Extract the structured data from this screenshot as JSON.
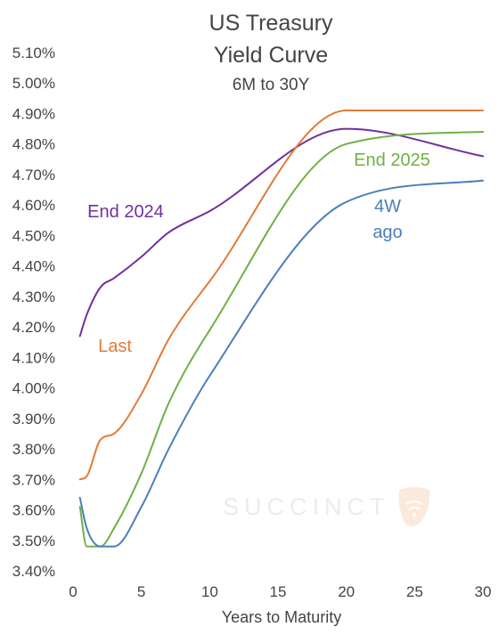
{
  "chart_data": {
    "type": "line",
    "title_lines": [
      "US Treasury",
      "Yield Curve"
    ],
    "subtitle": "6M to 30Y",
    "xlabel": "Years to Maturity",
    "ylabel": "",
    "xlim": [
      0,
      30
    ],
    "ylim": [
      3.4,
      5.1
    ],
    "x_ticks": [
      0,
      5,
      10,
      15,
      20,
      25,
      30
    ],
    "y_ticks": [
      3.4,
      3.5,
      3.6,
      3.7,
      3.8,
      3.9,
      4.0,
      4.1,
      4.2,
      4.3,
      4.4,
      4.5,
      4.6,
      4.7,
      4.8,
      4.9,
      5.0,
      5.1
    ],
    "y_tick_labels": [
      "3.40%",
      "3.50%",
      "3.60%",
      "3.70%",
      "3.80%",
      "3.90%",
      "4.00%",
      "4.10%",
      "4.20%",
      "4.30%",
      "4.40%",
      "4.50%",
      "4.60%",
      "4.70%",
      "4.80%",
      "4.90%",
      "5.00%",
      "5.10%"
    ],
    "grid": false,
    "watermark": "SUCCINCT",
    "series": [
      {
        "label_lines": [
          "End 2024"
        ],
        "color": "#7030a0",
        "points": [
          [
            0.5,
            4.17
          ],
          [
            1,
            4.24
          ],
          [
            2,
            4.33
          ],
          [
            3,
            4.36
          ],
          [
            5,
            4.43
          ],
          [
            7,
            4.51
          ],
          [
            10,
            4.58
          ],
          [
            20,
            4.85
          ],
          [
            30,
            4.76
          ]
        ]
      },
      {
        "label_lines": [
          "Last"
        ],
        "color": "#e07b39",
        "points": [
          [
            0.5,
            3.7
          ],
          [
            1,
            3.71
          ],
          [
            2,
            3.83
          ],
          [
            3,
            3.85
          ],
          [
            5,
            3.98
          ],
          [
            7,
            4.16
          ],
          [
            10,
            4.35
          ],
          [
            20,
            4.91
          ],
          [
            30,
            4.91
          ]
        ]
      },
      {
        "label_lines": [
          "End 2025"
        ],
        "color": "#70b044",
        "points": [
          [
            0.5,
            3.61
          ],
          [
            1,
            3.48
          ],
          [
            2,
            3.48
          ],
          [
            3,
            3.54
          ],
          [
            5,
            3.72
          ],
          [
            7,
            3.95
          ],
          [
            10,
            4.19
          ],
          [
            20,
            4.8
          ],
          [
            30,
            4.84
          ]
        ]
      },
      {
        "label_lines": [
          "4W",
          "ago"
        ],
        "color": "#4a7ebb",
        "points": [
          [
            0.5,
            3.64
          ],
          [
            1,
            3.54
          ],
          [
            2,
            3.48
          ],
          [
            3,
            3.48
          ],
          [
            5,
            3.61
          ],
          [
            7,
            3.8
          ],
          [
            10,
            4.04
          ],
          [
            20,
            4.61
          ],
          [
            30,
            4.68
          ]
        ]
      }
    ]
  }
}
